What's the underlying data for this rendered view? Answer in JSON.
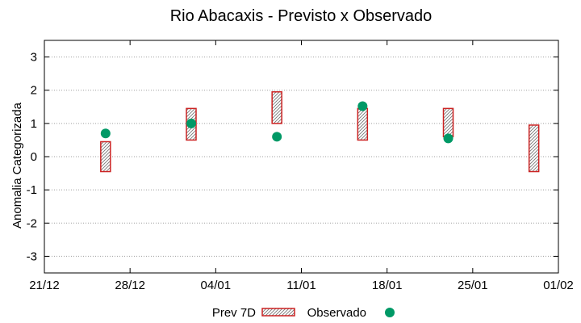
{
  "chart_data": {
    "type": "range-bar+scatter",
    "title": "Rio Abacaxis - Previsto x Observado",
    "ylabel": "Anomalia Categorizada",
    "xlabel": "",
    "ylim": [
      -3.5,
      3.5
    ],
    "yticks": [
      -3,
      -2,
      -1,
      0,
      1,
      2,
      3
    ],
    "xlim": [
      0,
      42
    ],
    "xticks": [
      {
        "day": 0,
        "label": "21/12"
      },
      {
        "day": 7,
        "label": "28/12"
      },
      {
        "day": 14,
        "label": "04/01"
      },
      {
        "day": 21,
        "label": "11/01"
      },
      {
        "day": 28,
        "label": "18/01"
      },
      {
        "day": 35,
        "label": "25/01"
      },
      {
        "day": 42,
        "label": "01/02"
      }
    ],
    "grid": "horizontal-dotted",
    "legend_position": "bottom",
    "series": [
      {
        "name": "Prev 7D",
        "kind": "range",
        "color": "#cc2222",
        "points": [
          {
            "day": 5,
            "low": -0.45,
            "high": 0.45
          },
          {
            "day": 12,
            "low": 0.5,
            "high": 1.45
          },
          {
            "day": 19,
            "low": 1.0,
            "high": 1.95
          },
          {
            "day": 26,
            "low": 0.5,
            "high": 1.45
          },
          {
            "day": 33,
            "low": 0.6,
            "high": 1.45
          },
          {
            "day": 40,
            "low": -0.45,
            "high": 0.95
          }
        ]
      },
      {
        "name": "Observado",
        "kind": "point",
        "color": "#009966",
        "points": [
          {
            "day": 5,
            "value": 0.7
          },
          {
            "day": 12,
            "value": 1.0
          },
          {
            "day": 19,
            "value": 0.6
          },
          {
            "day": 26,
            "value": 1.52
          },
          {
            "day": 33,
            "value": 0.55
          }
        ]
      }
    ]
  }
}
